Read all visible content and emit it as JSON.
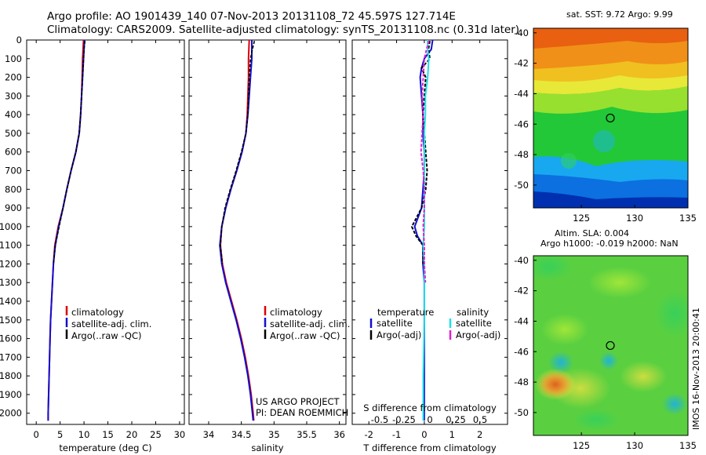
{
  "header": {
    "line1": "Argo profile: AO 1901439_140 07-Nov-2013 20131108_72 45.597S 127.714E",
    "line2": "Climatology: CARS2009. Satellite-adjusted climatology: synTS_20131108.nc (0.31d later)"
  },
  "colors": {
    "clim": "#dd0000",
    "sat": "#1010d0",
    "argo": "#000000",
    "sal_sat": "#20e0e8",
    "sal_argo": "#e020d0"
  },
  "chart_data": [
    {
      "type": "line",
      "xlabel": "temperature (deg C)",
      "ylabel": "",
      "xlim": [
        -2,
        31
      ],
      "ylim": [
        0,
        2060
      ],
      "xticks": [
        "0",
        "5",
        "10",
        "15",
        "20",
        "25",
        "30"
      ],
      "yticks": [
        "0",
        "100",
        "200",
        "300",
        "400",
        "500",
        "600",
        "700",
        "800",
        "900",
        "1000",
        "1100",
        "1200",
        "1300",
        "1400",
        "1500",
        "1600",
        "1700",
        "1800",
        "1900",
        "2000"
      ],
      "legend": [
        "climatology",
        "satellite-adj. clim.",
        "Argo(..raw -QC)"
      ],
      "series": [
        {
          "name": "climatology",
          "depth": [
            0,
            50,
            100,
            200,
            300,
            400,
            500,
            600,
            700,
            800,
            900,
            1000,
            1100,
            1200,
            1300,
            1400,
            1500,
            1600,
            1700,
            1800,
            1900,
            2000,
            2040
          ],
          "values": [
            9.9,
            9.8,
            9.7,
            9.6,
            9.5,
            9.3,
            9.0,
            8.3,
            7.3,
            6.4,
            5.6,
            4.6,
            3.9,
            3.6,
            3.4,
            3.2,
            3.0,
            2.9,
            2.8,
            2.7,
            2.6,
            2.5,
            2.5
          ]
        },
        {
          "name": "satellite-adj. clim.",
          "depth": [
            0,
            50,
            100,
            200,
            300,
            400,
            500,
            600,
            700,
            800,
            900,
            1000,
            1100,
            1200,
            1300,
            1400,
            1500,
            1600,
            1700,
            1800,
            1900,
            2000,
            2040
          ],
          "values": [
            10.1,
            10.0,
            9.9,
            9.7,
            9.5,
            9.3,
            9.0,
            8.3,
            7.3,
            6.4,
            5.6,
            4.7,
            4.0,
            3.6,
            3.4,
            3.2,
            3.0,
            2.9,
            2.8,
            2.7,
            2.6,
            2.5,
            2.5
          ]
        },
        {
          "name": "Argo(..raw -QC)",
          "depth": [
            5,
            50,
            100,
            200,
            300,
            400,
            500,
            600,
            700,
            800,
            900,
            1000,
            1100,
            1200
          ],
          "values": [
            10.2,
            10.0,
            9.9,
            9.7,
            9.5,
            9.3,
            9.0,
            8.3,
            7.3,
            6.4,
            5.6,
            4.8,
            4.0,
            3.6
          ]
        }
      ]
    },
    {
      "type": "line",
      "xlabel": "salinity",
      "xlim": [
        33.7,
        36.1
      ],
      "ylim": [
        0,
        2060
      ],
      "xticks": [
        "34",
        "34.5",
        "35",
        "35.5",
        "36"
      ],
      "legend": [
        "climatology",
        "satellite-adj. clim.",
        "Argo(..raw -QC)"
      ],
      "annotation": [
        "US ARGO PROJECT",
        "PI: DEAN ROEMMICH"
      ],
      "series": [
        {
          "name": "climatology",
          "depth": [
            0,
            100,
            200,
            300,
            400,
            500,
            600,
            700,
            800,
            900,
            1000,
            1100,
            1200,
            1300,
            1400,
            1500,
            1600,
            1700,
            1800,
            1900,
            2000,
            2040
          ],
          "values": [
            34.62,
            34.61,
            34.61,
            34.6,
            34.59,
            34.57,
            34.51,
            34.43,
            34.34,
            34.26,
            34.2,
            34.18,
            34.21,
            34.27,
            34.35,
            34.43,
            34.5,
            34.56,
            34.61,
            34.65,
            34.68,
            34.69
          ]
        },
        {
          "name": "satellite-adj. clim.",
          "depth": [
            0,
            100,
            200,
            300,
            400,
            500,
            600,
            700,
            800,
            900,
            1000,
            1100,
            1200,
            1300,
            1400,
            1500,
            1600,
            1700,
            1800,
            1900,
            2000,
            2040
          ],
          "values": [
            34.66,
            34.66,
            34.64,
            34.62,
            34.6,
            34.57,
            34.51,
            34.43,
            34.34,
            34.26,
            34.2,
            34.17,
            34.2,
            34.26,
            34.34,
            34.42,
            34.49,
            34.55,
            34.6,
            34.64,
            34.67,
            34.68
          ]
        },
        {
          "name": "Argo(..raw -QC)",
          "depth": [
            5,
            50,
            100,
            150,
            200,
            300,
            400,
            500,
            600,
            700,
            800,
            900,
            1000,
            1100,
            1200
          ],
          "values": [
            34.7,
            34.67,
            34.64,
            34.63,
            34.62,
            34.61,
            34.6,
            34.57,
            34.5,
            34.42,
            34.33,
            34.25,
            34.2,
            34.18,
            34.21
          ]
        }
      ]
    },
    {
      "type": "line",
      "xlabel": "T difference from climatology",
      "xlabel_top": "S difference from climatology",
      "xlim": [
        -2.6,
        3.0
      ],
      "ylim": [
        0,
        2060
      ],
      "xticks": [
        "-2",
        "-1",
        "0",
        "1",
        "2"
      ],
      "xticks_top": [
        "-0.5",
        "-0.25",
        "0",
        "0.25",
        "0.5"
      ],
      "legend_headers": [
        "temperature",
        "salinity"
      ],
      "legend": [
        "satellite",
        "Argo(-adj)",
        "satellite",
        "Argo(-adj)"
      ],
      "series": [
        {
          "name": "temperature satellite",
          "depth": [
            0,
            50,
            100,
            150,
            200,
            300,
            400,
            500,
            600,
            700,
            800,
            900,
            1000,
            1050,
            1100,
            1200,
            1300,
            1500,
            1800,
            2040
          ],
          "values": [
            0.3,
            0.25,
            0.0,
            -0.1,
            -0.15,
            -0.1,
            -0.05,
            -0.05,
            0.0,
            0.0,
            -0.05,
            -0.1,
            -0.35,
            -0.25,
            -0.05,
            -0.05,
            0.0,
            0.0,
            0.0,
            0.0
          ]
        },
        {
          "name": "temperature Argo",
          "depth": [
            5,
            50,
            100,
            150,
            200,
            300,
            400,
            500,
            600,
            700,
            800,
            900,
            1000,
            1050,
            1100,
            1200
          ],
          "values": [
            0.2,
            0.15,
            0.2,
            -0.1,
            0.05,
            0.0,
            -0.05,
            0.0,
            0.05,
            0.1,
            0.05,
            -0.1,
            -0.45,
            -0.3,
            -0.05,
            -0.05
          ]
        },
        {
          "name": "salinity satellite",
          "depth": [
            0,
            50,
            100,
            200,
            300,
            400,
            500,
            600,
            700,
            800,
            900,
            1000,
            1100,
            1200,
            1300,
            1500,
            1800,
            2040
          ],
          "values": [
            0.03,
            0.03,
            0.04,
            0.03,
            0.01,
            0.01,
            0.0,
            0.0,
            0.0,
            0.0,
            0.0,
            0.0,
            -0.01,
            0.0,
            0.0,
            0.0,
            -0.01,
            -0.01
          ]
        },
        {
          "name": "salinity Argo",
          "depth": [
            5,
            50,
            100,
            200,
            300,
            400,
            500,
            600,
            700,
            800,
            900,
            1000,
            1100,
            1200,
            1300
          ],
          "values": [
            0.04,
            0.02,
            0.0,
            -0.01,
            -0.02,
            -0.01,
            -0.02,
            -0.03,
            -0.01,
            0.0,
            0.0,
            -0.01,
            0.0,
            0.0,
            0.01
          ]
        }
      ]
    },
    {
      "type": "heatmap",
      "title": "sat. SST: 9.72  Argo: 9.99",
      "xlim": [
        120.5,
        135
      ],
      "ylim": [
        -51.5,
        -39.7
      ],
      "xticks": [
        "125",
        "130",
        "135"
      ],
      "yticks": [
        "-40",
        "-42",
        "-44",
        "-46",
        "-48",
        "-50"
      ],
      "marker": {
        "lon": 127.714,
        "lat": -45.597
      }
    },
    {
      "type": "heatmap",
      "title": "Altim. SLA: 0.004",
      "subtitle": "Argo h1000: -0.019  h2000: NaN",
      "xlim": [
        120.5,
        135
      ],
      "ylim": [
        -51.5,
        -39.7
      ],
      "xticks": [
        "125",
        "130",
        "135"
      ],
      "yticks": [
        "-40",
        "-42",
        "-44",
        "-46",
        "-48",
        "-50"
      ],
      "marker": {
        "lon": 127.714,
        "lat": -45.597
      },
      "side_label": "IMOS 16-Nov-2013 20:00:41"
    }
  ]
}
